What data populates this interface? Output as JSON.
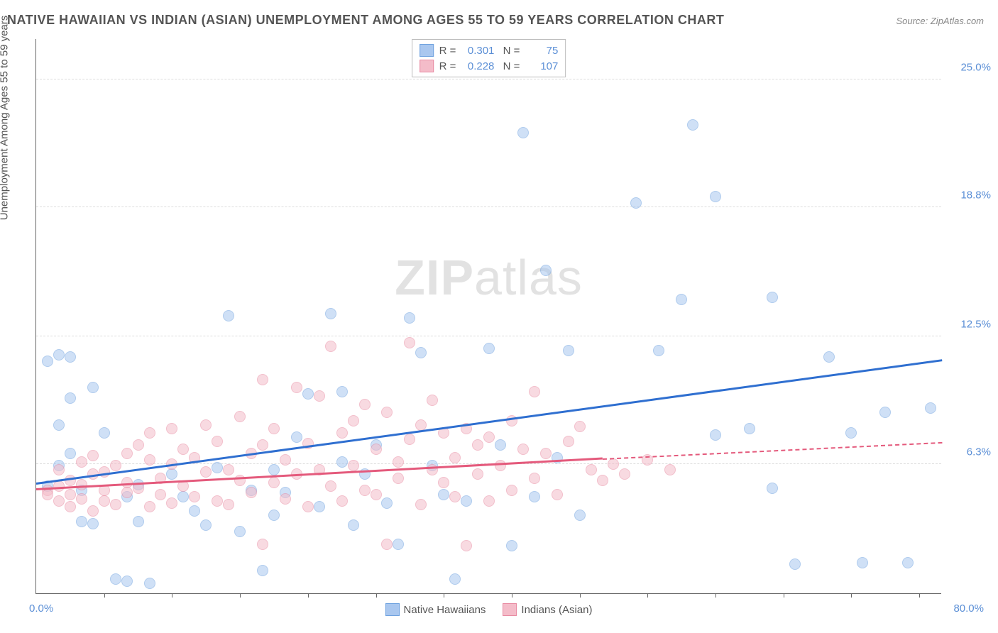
{
  "title": "NATIVE HAWAIIAN VS INDIAN (ASIAN) UNEMPLOYMENT AMONG AGES 55 TO 59 YEARS CORRELATION CHART",
  "source": "Source: ZipAtlas.com",
  "y_axis_label": "Unemployment Among Ages 55 to 59 years",
  "watermark_bold": "ZIP",
  "watermark_light": "atlas",
  "chart": {
    "type": "scatter",
    "background_color": "#ffffff",
    "grid_color": "#dddddd",
    "xlim": [
      0,
      80
    ],
    "ylim": [
      0,
      27
    ],
    "x_min_label": "0.0%",
    "x_max_label": "80.0%",
    "y_ticks": [
      {
        "val": 6.3,
        "label": "6.3%"
      },
      {
        "val": 12.5,
        "label": "12.5%"
      },
      {
        "val": 18.8,
        "label": "18.8%"
      },
      {
        "val": 25.0,
        "label": "25.0%"
      }
    ],
    "x_tick_positions": [
      6,
      12,
      18,
      24,
      30,
      36,
      42,
      48,
      54,
      60,
      66,
      72,
      78
    ],
    "marker_radius": 8,
    "marker_opacity": 0.55
  },
  "series": [
    {
      "name": "Native Hawaiians",
      "color_fill": "#a9c7ef",
      "color_stroke": "#6fa2df",
      "trend_color": "#2f6fd0",
      "R": "0.301",
      "N": "75",
      "trend": {
        "x1": 0,
        "y1": 5.3,
        "x2": 80,
        "y2": 11.3,
        "dash_from_x": 80
      },
      "points": [
        [
          1,
          5.2
        ],
        [
          1,
          11.3
        ],
        [
          2,
          11.6
        ],
        [
          2,
          8.2
        ],
        [
          2,
          6.2
        ],
        [
          3,
          11.5
        ],
        [
          3,
          9.5
        ],
        [
          3,
          6.8
        ],
        [
          4,
          3.5
        ],
        [
          4,
          5.0
        ],
        [
          5,
          10.0
        ],
        [
          5,
          3.4
        ],
        [
          6,
          7.8
        ],
        [
          7,
          0.7
        ],
        [
          8,
          0.6
        ],
        [
          8,
          4.7
        ],
        [
          9,
          3.5
        ],
        [
          9,
          5.3
        ],
        [
          10,
          0.5
        ],
        [
          12,
          5.8
        ],
        [
          13,
          4.7
        ],
        [
          14,
          4.0
        ],
        [
          15,
          3.3
        ],
        [
          16,
          6.1
        ],
        [
          17,
          13.5
        ],
        [
          18,
          3.0
        ],
        [
          19,
          5.0
        ],
        [
          20,
          1.1
        ],
        [
          21,
          3.8
        ],
        [
          21,
          6.0
        ],
        [
          22,
          4.9
        ],
        [
          23,
          7.6
        ],
        [
          24,
          9.7
        ],
        [
          25,
          4.2
        ],
        [
          26,
          13.6
        ],
        [
          27,
          6.4
        ],
        [
          27,
          9.8
        ],
        [
          28,
          3.3
        ],
        [
          29,
          5.8
        ],
        [
          30,
          7.2
        ],
        [
          31,
          4.4
        ],
        [
          32,
          2.4
        ],
        [
          33,
          13.4
        ],
        [
          34,
          11.7
        ],
        [
          35,
          6.2
        ],
        [
          36,
          4.8
        ],
        [
          37,
          0.7
        ],
        [
          38,
          4.5
        ],
        [
          40,
          11.9
        ],
        [
          41,
          7.2
        ],
        [
          42,
          2.3
        ],
        [
          43,
          22.4
        ],
        [
          44,
          4.7
        ],
        [
          45,
          15.7
        ],
        [
          46,
          6.6
        ],
        [
          47,
          11.8
        ],
        [
          48,
          3.8
        ],
        [
          53,
          19.0
        ],
        [
          55,
          11.8
        ],
        [
          57,
          14.3
        ],
        [
          58,
          22.8
        ],
        [
          60,
          7.7
        ],
        [
          60,
          19.3
        ],
        [
          63,
          8.0
        ],
        [
          65,
          5.1
        ],
        [
          65,
          14.4
        ],
        [
          67,
          1.4
        ],
        [
          70,
          11.5
        ],
        [
          72,
          7.8
        ],
        [
          73,
          1.5
        ],
        [
          75,
          8.8
        ],
        [
          77,
          1.5
        ],
        [
          79,
          9.0
        ]
      ]
    },
    {
      "name": "Indians (Asian)",
      "color_fill": "#f4bcc9",
      "color_stroke": "#e88ba2",
      "trend_color": "#e45a7c",
      "R": "0.228",
      "N": "107",
      "trend": {
        "x1": 0,
        "y1": 5.0,
        "x2": 50,
        "y2": 6.5,
        "dash_from_x": 50,
        "dash_x2": 80,
        "dash_y2": 7.3
      },
      "points": [
        [
          1,
          5.0
        ],
        [
          1,
          4.8
        ],
        [
          2,
          4.5
        ],
        [
          2,
          5.2
        ],
        [
          2,
          6.0
        ],
        [
          3,
          4.2
        ],
        [
          3,
          5.5
        ],
        [
          3,
          4.8
        ],
        [
          4,
          5.3
        ],
        [
          4,
          4.6
        ],
        [
          4,
          6.4
        ],
        [
          5,
          4.0
        ],
        [
          5,
          5.8
        ],
        [
          5,
          6.7
        ],
        [
          6,
          4.5
        ],
        [
          6,
          5.0
        ],
        [
          6,
          5.9
        ],
        [
          7,
          4.3
        ],
        [
          7,
          6.2
        ],
        [
          8,
          4.9
        ],
        [
          8,
          5.4
        ],
        [
          8,
          6.8
        ],
        [
          9,
          7.2
        ],
        [
          9,
          5.1
        ],
        [
          10,
          4.2
        ],
        [
          10,
          6.5
        ],
        [
          10,
          7.8
        ],
        [
          11,
          5.6
        ],
        [
          11,
          4.8
        ],
        [
          12,
          4.4
        ],
        [
          12,
          6.3
        ],
        [
          12,
          8.0
        ],
        [
          13,
          5.2
        ],
        [
          13,
          7.0
        ],
        [
          14,
          4.7
        ],
        [
          14,
          6.6
        ],
        [
          15,
          5.9
        ],
        [
          15,
          8.2
        ],
        [
          16,
          4.5
        ],
        [
          16,
          7.4
        ],
        [
          17,
          6.0
        ],
        [
          17,
          4.3
        ],
        [
          18,
          5.5
        ],
        [
          18,
          8.6
        ],
        [
          19,
          6.8
        ],
        [
          19,
          4.9
        ],
        [
          20,
          2.4
        ],
        [
          20,
          7.2
        ],
        [
          20,
          10.4
        ],
        [
          21,
          5.4
        ],
        [
          21,
          8.0
        ],
        [
          22,
          4.6
        ],
        [
          22,
          6.5
        ],
        [
          23,
          10.0
        ],
        [
          23,
          5.8
        ],
        [
          24,
          7.3
        ],
        [
          24,
          4.2
        ],
        [
          25,
          9.6
        ],
        [
          25,
          6.0
        ],
        [
          26,
          12.0
        ],
        [
          26,
          5.2
        ],
        [
          27,
          7.8
        ],
        [
          27,
          4.5
        ],
        [
          28,
          8.4
        ],
        [
          28,
          6.2
        ],
        [
          29,
          5.0
        ],
        [
          29,
          9.2
        ],
        [
          30,
          7.0
        ],
        [
          30,
          4.8
        ],
        [
          31,
          8.8
        ],
        [
          31,
          2.4
        ],
        [
          32,
          6.4
        ],
        [
          32,
          5.6
        ],
        [
          33,
          12.2
        ],
        [
          33,
          7.5
        ],
        [
          34,
          4.3
        ],
        [
          34,
          8.2
        ],
        [
          35,
          9.4
        ],
        [
          35,
          6.0
        ],
        [
          36,
          5.4
        ],
        [
          36,
          7.8
        ],
        [
          37,
          4.7
        ],
        [
          37,
          6.6
        ],
        [
          38,
          8.0
        ],
        [
          38,
          2.3
        ],
        [
          39,
          5.8
        ],
        [
          39,
          7.2
        ],
        [
          40,
          7.6
        ],
        [
          40,
          4.5
        ],
        [
          41,
          6.2
        ],
        [
          42,
          5.0
        ],
        [
          42,
          8.4
        ],
        [
          43,
          7.0
        ],
        [
          44,
          9.8
        ],
        [
          44,
          5.6
        ],
        [
          45,
          6.8
        ],
        [
          46,
          4.8
        ],
        [
          47,
          7.4
        ],
        [
          48,
          8.1
        ],
        [
          49,
          6.0
        ],
        [
          50,
          5.5
        ],
        [
          51,
          6.3
        ],
        [
          52,
          5.8
        ],
        [
          54,
          6.5
        ],
        [
          56,
          6.0
        ]
      ]
    }
  ],
  "stats_legend_labels": {
    "R": "R =",
    "N": "N ="
  },
  "bottom_legend_title": ""
}
